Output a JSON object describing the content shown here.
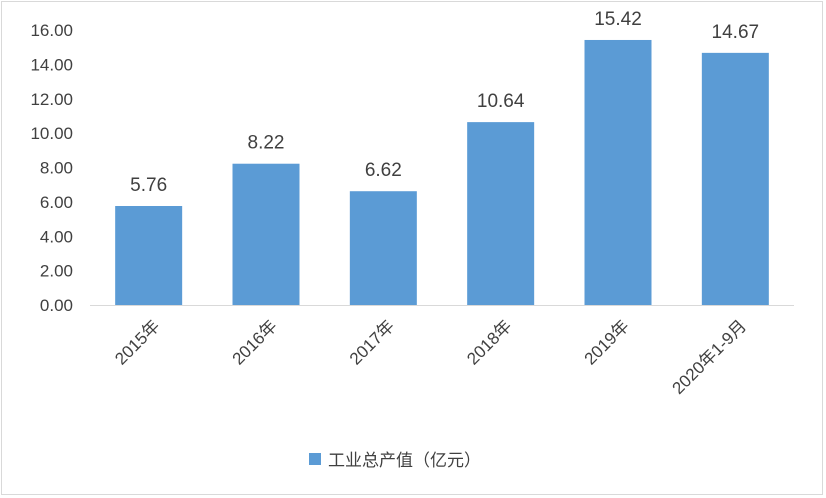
{
  "chart_data": {
    "type": "bar",
    "title": "",
    "xlabel": "",
    "ylabel": "",
    "categories": [
      "2015年",
      "2016年",
      "2017年",
      "2018年",
      "2019年",
      "2020年1-9月"
    ],
    "series": [
      {
        "name": "工业总产值（亿元）",
        "values": [
          5.76,
          8.22,
          6.62,
          10.64,
          15.42,
          14.67
        ],
        "color": "#5b9bd5"
      }
    ],
    "data_labels": [
      "5.76",
      "8.22",
      "6.62",
      "10.64",
      "15.42",
      "14.67"
    ],
    "ylim": [
      0,
      16
    ],
    "yticks": [
      "0.00",
      "2.00",
      "4.00",
      "6.00",
      "8.00",
      "10.00",
      "12.00",
      "14.00",
      "16.00"
    ],
    "grid": false,
    "legend_position": "bottom"
  }
}
